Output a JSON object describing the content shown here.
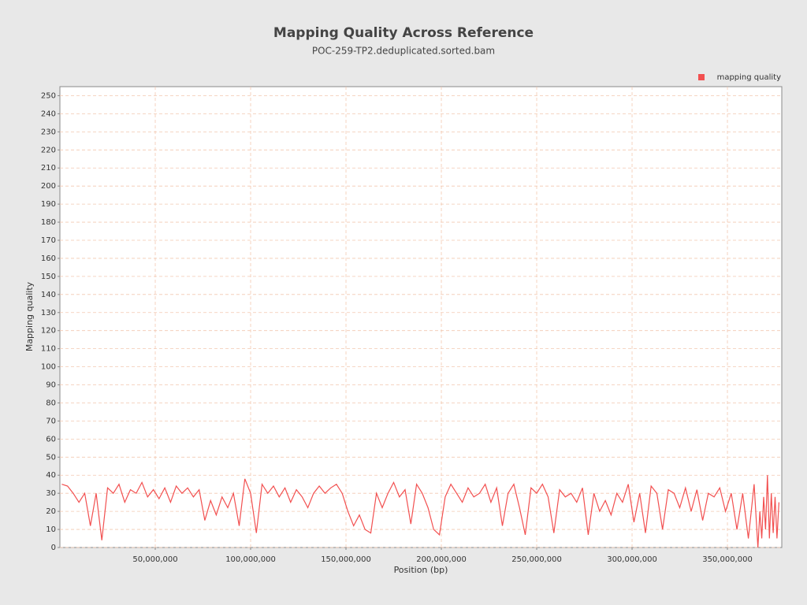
{
  "chart_data": {
    "type": "line",
    "title": "Mapping Quality Across Reference",
    "subtitle": "POC-259-TP2.deduplicated.sorted.bam",
    "xlabel": "Position (bp)",
    "ylabel": "Mapping quality",
    "legend": "upper right",
    "grid": true,
    "xlim": [
      0,
      378500000
    ],
    "ylim": [
      0,
      255
    ],
    "xticks": [
      {
        "value": 50000000,
        "label": "50,000,000"
      },
      {
        "value": 100000000,
        "label": "100,000,000"
      },
      {
        "value": 150000000,
        "label": "150,000,000"
      },
      {
        "value": 200000000,
        "label": "200,000,000"
      },
      {
        "value": 250000000,
        "label": "250,000,000"
      },
      {
        "value": 300000000,
        "label": "300,000,000"
      },
      {
        "value": 350000000,
        "label": "350,000,000"
      }
    ],
    "yticks": [
      0,
      10,
      20,
      30,
      40,
      50,
      60,
      70,
      80,
      90,
      100,
      110,
      120,
      130,
      140,
      150,
      160,
      170,
      180,
      190,
      200,
      210,
      220,
      230,
      240,
      250
    ],
    "x": [
      1000000,
      4000000,
      7000000,
      10000000,
      13000000,
      16000000,
      19000000,
      22000000,
      25000000,
      28000000,
      31000000,
      34000000,
      37000000,
      40000000,
      43000000,
      46000000,
      49000000,
      52000000,
      55000000,
      58000000,
      61000000,
      64000000,
      67000000,
      70000000,
      73000000,
      76000000,
      79000000,
      82000000,
      85000000,
      88000000,
      91000000,
      94000000,
      97000000,
      100000000,
      103000000,
      106000000,
      109000000,
      112000000,
      115000000,
      118000000,
      121000000,
      124000000,
      127000000,
      130000000,
      133000000,
      136000000,
      139000000,
      142000000,
      145000000,
      148000000,
      151000000,
      154000000,
      157000000,
      160000000,
      163000000,
      166000000,
      169000000,
      172000000,
      175000000,
      178000000,
      181000000,
      184000000,
      187000000,
      190000000,
      193000000,
      196000000,
      199000000,
      202000000,
      205000000,
      208000000,
      211000000,
      214000000,
      217000000,
      220000000,
      223000000,
      226000000,
      229000000,
      232000000,
      235000000,
      238000000,
      241000000,
      244000000,
      247000000,
      250000000,
      253000000,
      256000000,
      259000000,
      262000000,
      265000000,
      268000000,
      271000000,
      274000000,
      277000000,
      280000000,
      283000000,
      286000000,
      289000000,
      292000000,
      295000000,
      298000000,
      301000000,
      304000000,
      307000000,
      310000000,
      313000000,
      316000000,
      319000000,
      322000000,
      325000000,
      328000000,
      331000000,
      334000000,
      337000000,
      340000000,
      343000000,
      346000000,
      349000000,
      352000000,
      355000000,
      358000000,
      361000000,
      364000000,
      366000000,
      367000000,
      368000000,
      369000000,
      370000000,
      371000000,
      372000000,
      373000000,
      374000000,
      375000000,
      376000000,
      377000000
    ],
    "series": [
      {
        "name": "mapping quality",
        "color": "#f25050",
        "values": [
          35,
          34,
          30,
          25,
          30,
          12,
          30,
          4,
          33,
          30,
          35,
          25,
          32,
          30,
          36,
          28,
          32,
          27,
          33,
          25,
          34,
          30,
          33,
          28,
          32,
          15,
          26,
          18,
          28,
          22,
          30,
          12,
          38,
          30,
          8,
          35,
          30,
          34,
          28,
          33,
          25,
          32,
          28,
          22,
          30,
          34,
          30,
          33,
          35,
          30,
          20,
          12,
          18,
          10,
          8,
          30,
          22,
          30,
          36,
          28,
          32,
          13,
          35,
          30,
          22,
          10,
          7,
          28,
          35,
          30,
          25,
          33,
          28,
          30,
          35,
          25,
          33,
          12,
          30,
          35,
          22,
          7,
          33,
          30,
          35,
          28,
          8,
          32,
          28,
          30,
          25,
          33,
          7,
          30,
          20,
          26,
          18,
          30,
          25,
          35,
          14,
          30,
          8,
          34,
          30,
          10,
          32,
          30,
          22,
          33,
          20,
          32,
          15,
          30,
          28,
          33,
          20,
          30,
          10,
          30,
          5,
          35,
          0,
          20,
          5,
          28,
          10,
          40,
          5,
          30,
          8,
          28,
          5,
          25
        ]
      }
    ]
  }
}
